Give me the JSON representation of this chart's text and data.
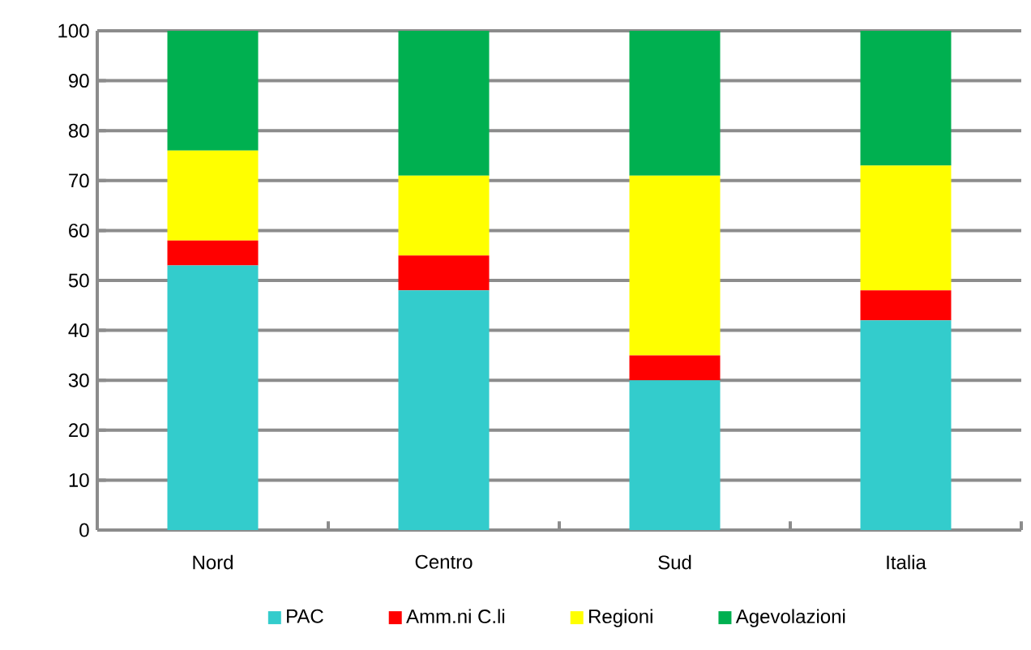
{
  "chart_data": {
    "type": "bar",
    "stacked": true,
    "categories": [
      "Nord",
      "Centro",
      "Sud",
      "Italia"
    ],
    "series": [
      {
        "name": "PAC",
        "color": "#33cccc",
        "values": [
          53,
          48,
          30,
          42
        ]
      },
      {
        "name": "Amm.ni C.li",
        "color": "#ff0000",
        "values": [
          5,
          7,
          5,
          6
        ]
      },
      {
        "name": "Regioni",
        "color": "#ffff00",
        "values": [
          18,
          16,
          36,
          25
        ]
      },
      {
        "name": "Agevolazioni",
        "color": "#00b050",
        "values": [
          24,
          29,
          29,
          27
        ]
      }
    ],
    "ylim": [
      0,
      100
    ],
    "yticks": [
      0,
      10,
      20,
      30,
      40,
      50,
      60,
      70,
      80,
      90,
      100
    ],
    "grid": "y",
    "legend": "bottom"
  }
}
